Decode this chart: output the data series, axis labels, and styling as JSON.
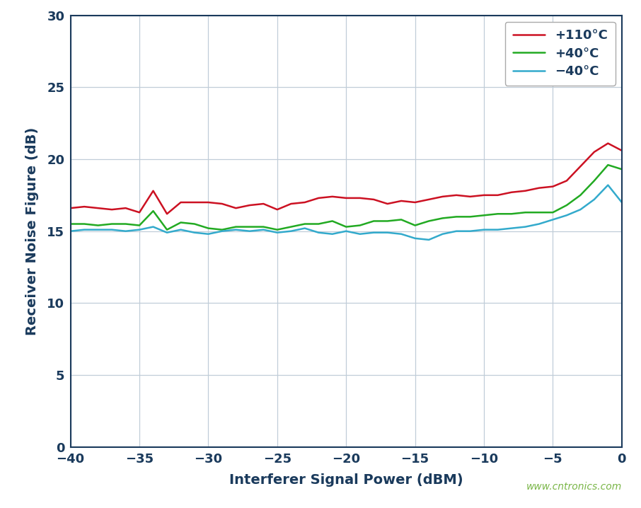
{
  "title": "",
  "xlabel": "Interferer Signal Power (dBM)",
  "ylabel": "Receiver Noise Figure (dB)",
  "xlim": [
    -40,
    0
  ],
  "ylim": [
    0,
    30
  ],
  "xticks": [
    -40,
    -35,
    -30,
    -25,
    -20,
    -15,
    -10,
    -5,
    0
  ],
  "yticks": [
    0,
    5,
    10,
    15,
    20,
    25,
    30
  ],
  "background_color": "#ffffff",
  "plot_bg_color": "#ffffff",
  "grid_color": "#c0cdd8",
  "watermark": "www.cntronics.com",
  "series": [
    {
      "label": "+110°C",
      "color": "#cc1122",
      "x": [
        -40,
        -39,
        -38,
        -37,
        -36,
        -35,
        -34,
        -33,
        -32,
        -31,
        -30,
        -29,
        -28,
        -27,
        -26,
        -25,
        -24,
        -23,
        -22,
        -21,
        -20,
        -19,
        -18,
        -17,
        -16,
        -15,
        -14,
        -13,
        -12,
        -11,
        -10,
        -9,
        -8,
        -7,
        -6,
        -5,
        -4,
        -3,
        -2,
        -1,
        0
      ],
      "y": [
        16.6,
        16.7,
        16.6,
        16.5,
        16.6,
        16.3,
        17.8,
        16.2,
        17.0,
        17.0,
        17.0,
        16.9,
        16.6,
        16.8,
        16.9,
        16.5,
        16.9,
        17.0,
        17.3,
        17.4,
        17.3,
        17.3,
        17.2,
        16.9,
        17.1,
        17.0,
        17.2,
        17.4,
        17.5,
        17.4,
        17.5,
        17.5,
        17.7,
        17.8,
        18.0,
        18.1,
        18.5,
        19.5,
        20.5,
        21.1,
        20.6
      ]
    },
    {
      "label": "+40°C",
      "color": "#22aa22",
      "x": [
        -40,
        -39,
        -38,
        -37,
        -36,
        -35,
        -34,
        -33,
        -32,
        -31,
        -30,
        -29,
        -28,
        -27,
        -26,
        -25,
        -24,
        -23,
        -22,
        -21,
        -20,
        -19,
        -18,
        -17,
        -16,
        -15,
        -14,
        -13,
        -12,
        -11,
        -10,
        -9,
        -8,
        -7,
        -6,
        -5,
        -4,
        -3,
        -2,
        -1,
        0
      ],
      "y": [
        15.5,
        15.5,
        15.4,
        15.5,
        15.5,
        15.4,
        16.4,
        15.1,
        15.6,
        15.5,
        15.2,
        15.1,
        15.3,
        15.3,
        15.3,
        15.1,
        15.3,
        15.5,
        15.5,
        15.7,
        15.3,
        15.4,
        15.7,
        15.7,
        15.8,
        15.4,
        15.7,
        15.9,
        16.0,
        16.0,
        16.1,
        16.2,
        16.2,
        16.3,
        16.3,
        16.3,
        16.8,
        17.5,
        18.5,
        19.6,
        19.3
      ]
    },
    {
      "label": "−40°C",
      "color": "#33aacc",
      "x": [
        -40,
        -39,
        -38,
        -37,
        -36,
        -35,
        -34,
        -33,
        -32,
        -31,
        -30,
        -29,
        -28,
        -27,
        -26,
        -25,
        -24,
        -23,
        -22,
        -21,
        -20,
        -19,
        -18,
        -17,
        -16,
        -15,
        -14,
        -13,
        -12,
        -11,
        -10,
        -9,
        -8,
        -7,
        -6,
        -5,
        -4,
        -3,
        -2,
        -1,
        0
      ],
      "y": [
        15.0,
        15.1,
        15.1,
        15.1,
        15.0,
        15.1,
        15.3,
        14.9,
        15.1,
        14.9,
        14.8,
        15.0,
        15.1,
        15.0,
        15.1,
        14.9,
        15.0,
        15.2,
        14.9,
        14.8,
        15.0,
        14.8,
        14.9,
        14.9,
        14.8,
        14.5,
        14.4,
        14.8,
        15.0,
        15.0,
        15.1,
        15.1,
        15.2,
        15.3,
        15.5,
        15.8,
        16.1,
        16.5,
        17.2,
        18.2,
        17.0
      ]
    }
  ],
  "axis_label_color": "#1a3a5c",
  "tick_color": "#1a3a5c",
  "spine_color": "#1a3a5c",
  "xlabel_fontsize": 14,
  "ylabel_fontsize": 14,
  "tick_fontsize": 13,
  "legend_fontsize": 13,
  "linewidth": 1.8,
  "watermark_color": "#7ab648",
  "watermark_fontsize": 10
}
